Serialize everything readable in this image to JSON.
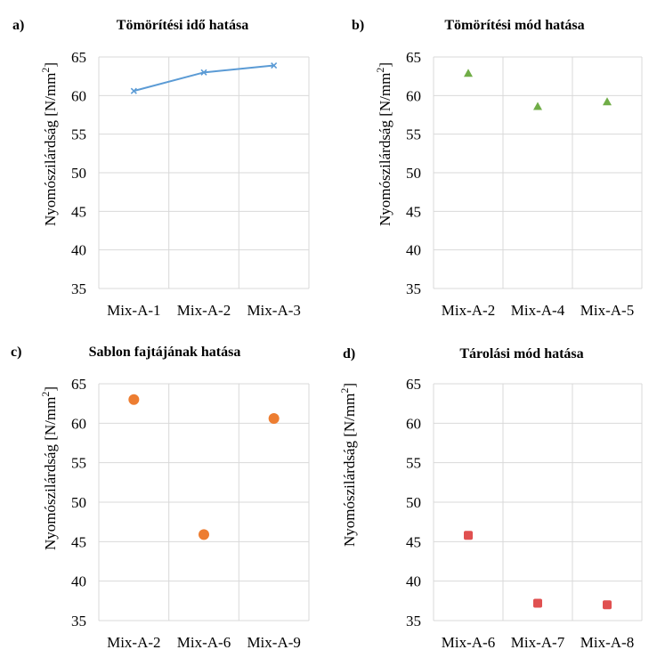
{
  "chart_data": [
    {
      "panel": "a)",
      "type": "line",
      "title": "Tömörítési idő hatása",
      "ylabel_main": "Nyomószilárdság [N/mm",
      "ylabel_sup": "2",
      "ylabel_end": "]",
      "categories": [
        "Mix-A-1",
        "Mix-A-2",
        "Mix-A-3"
      ],
      "values": [
        60.6,
        63.0,
        63.9
      ],
      "ylim": [
        35,
        65
      ],
      "yticks": [
        35,
        40,
        45,
        50,
        55,
        60,
        65
      ],
      "marker": "x",
      "color": "#5b9bd5"
    },
    {
      "panel": "b)",
      "type": "scatter",
      "title": "Tömörítési mód hatása",
      "ylabel_main": "Nyomószilárdság [N/mm",
      "ylabel_sup": "2",
      "ylabel_end": "]",
      "categories": [
        "Mix-A-2",
        "Mix-A-4",
        "Mix-A-5"
      ],
      "values": [
        62.9,
        58.6,
        59.2
      ],
      "ylim": [
        35,
        65
      ],
      "yticks": [
        35,
        40,
        45,
        50,
        55,
        60,
        65
      ],
      "marker": "triangle",
      "color": "#70ad47"
    },
    {
      "panel": "c)",
      "type": "scatter",
      "title": "Sablon fajtájának hatása",
      "ylabel_main": "Nyomószilárdság [N/mm",
      "ylabel_sup": "2",
      "ylabel_end": "]",
      "categories": [
        "Mix-A-2",
        "Mix-A-6",
        "Mix-A-9"
      ],
      "values": [
        63.0,
        45.9,
        60.6
      ],
      "ylim": [
        35,
        65
      ],
      "yticks": [
        35,
        40,
        45,
        50,
        55,
        60,
        65
      ],
      "marker": "circle",
      "color": "#ed7d31"
    },
    {
      "panel": "d)",
      "type": "scatter",
      "title": "Tárolási mód hatása",
      "ylabel_main": "Nyomószilárdság [N/mm",
      "ylabel_sup": "2",
      "ylabel_end": "]",
      "categories": [
        "Mix-A-6",
        "Mix-A-7",
        "Mix-A-8"
      ],
      "values": [
        45.8,
        37.2,
        37.0
      ],
      "ylim": [
        35,
        65
      ],
      "yticks": [
        35,
        40,
        45,
        50,
        55,
        60,
        65
      ],
      "marker": "square",
      "color": "#e05050"
    }
  ]
}
